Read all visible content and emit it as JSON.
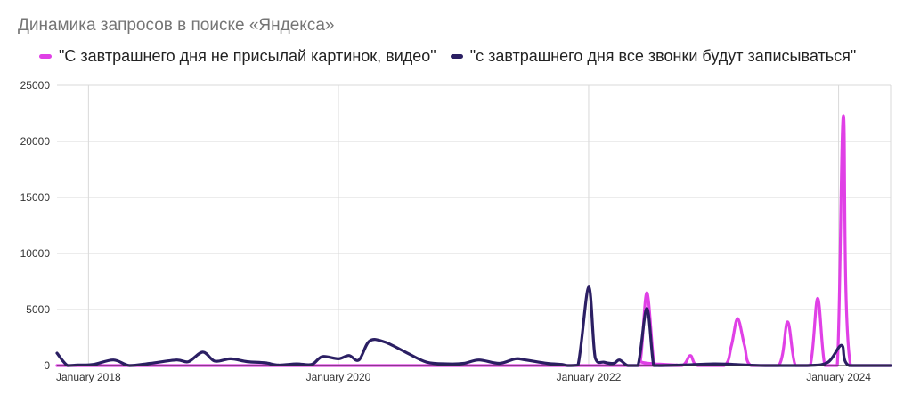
{
  "chart_data": {
    "type": "line",
    "title": "Динамика запросов в поиске «Яндекса»",
    "legend_position": "top",
    "grid": true,
    "x_range": [
      "2017-10-01",
      "2024-06-01"
    ],
    "ylim": [
      0,
      25000
    ],
    "y_ticks": [
      "0",
      "5000",
      "10000",
      "15000",
      "20000",
      "25000"
    ],
    "x_ticks": [
      {
        "date": "2018-01-01",
        "label": "January 2018"
      },
      {
        "date": "2020-01-01",
        "label": "January 2020"
      },
      {
        "date": "2022-01-01",
        "label": "January 2022"
      },
      {
        "date": "2024-01-01",
        "label": "January 2024"
      }
    ],
    "series": [
      {
        "name": "\"С завтрашнего дня не присылай картинок, видео\"",
        "color": "#e040e6",
        "points": [
          [
            "2017-10-01",
            0
          ],
          [
            "2022-05-10",
            0
          ],
          [
            "2022-06-01",
            400
          ],
          [
            "2022-06-20",
            6500
          ],
          [
            "2022-07-10",
            400
          ],
          [
            "2022-07-25",
            0
          ],
          [
            "2022-10-01",
            0
          ],
          [
            "2022-10-25",
            900
          ],
          [
            "2022-11-15",
            0
          ],
          [
            "2023-02-01",
            0
          ],
          [
            "2023-02-22",
            1800
          ],
          [
            "2023-03-12",
            4200
          ],
          [
            "2023-04-01",
            1800
          ],
          [
            "2023-04-20",
            0
          ],
          [
            "2023-07-10",
            0
          ],
          [
            "2023-08-05",
            3900
          ],
          [
            "2023-08-28",
            0
          ],
          [
            "2023-10-10",
            0
          ],
          [
            "2023-11-01",
            6000
          ],
          [
            "2023-11-22",
            0
          ],
          [
            "2023-12-28",
            0
          ],
          [
            "2024-01-15",
            22300
          ],
          [
            "2024-02-05",
            0
          ],
          [
            "2024-06-01",
            0
          ]
        ]
      },
      {
        "name": "\"с завтрашнего дня все звонки будут записываться\"",
        "color": "#2b1f63",
        "points": [
          [
            "2017-10-01",
            1100
          ],
          [
            "2017-11-01",
            0
          ],
          [
            "2017-12-01",
            50
          ],
          [
            "2018-01-15",
            100
          ],
          [
            "2018-03-15",
            500
          ],
          [
            "2018-05-01",
            0
          ],
          [
            "2018-07-01",
            200
          ],
          [
            "2018-09-15",
            500
          ],
          [
            "2018-10-20",
            350
          ],
          [
            "2018-12-01",
            1200
          ],
          [
            "2019-01-05",
            400
          ],
          [
            "2019-02-20",
            600
          ],
          [
            "2019-04-10",
            350
          ],
          [
            "2019-06-01",
            250
          ],
          [
            "2019-07-10",
            50
          ],
          [
            "2019-09-01",
            150
          ],
          [
            "2019-10-15",
            100
          ],
          [
            "2019-11-15",
            800
          ],
          [
            "2020-01-01",
            600
          ],
          [
            "2020-02-01",
            900
          ],
          [
            "2020-03-01",
            500
          ],
          [
            "2020-04-01",
            2200
          ],
          [
            "2020-05-15",
            2100
          ],
          [
            "2020-07-15",
            1200
          ],
          [
            "2020-09-15",
            300
          ],
          [
            "2020-11-15",
            150
          ],
          [
            "2021-01-01",
            200
          ],
          [
            "2021-02-15",
            500
          ],
          [
            "2021-04-15",
            200
          ],
          [
            "2021-06-01",
            600
          ],
          [
            "2021-07-01",
            500
          ],
          [
            "2021-09-01",
            200
          ],
          [
            "2021-10-15",
            100
          ],
          [
            "2021-11-01",
            0
          ],
          [
            "2021-12-01",
            50
          ],
          [
            "2022-01-01",
            7000
          ],
          [
            "2022-01-20",
            700
          ],
          [
            "2022-02-15",
            300
          ],
          [
            "2022-03-15",
            200
          ],
          [
            "2022-04-01",
            500
          ],
          [
            "2022-04-25",
            0
          ],
          [
            "2022-05-25",
            0
          ],
          [
            "2022-06-20",
            5100
          ],
          [
            "2022-07-10",
            0
          ],
          [
            "2022-08-01",
            0
          ],
          [
            "2022-10-01",
            50
          ],
          [
            "2023-01-01",
            150
          ],
          [
            "2023-03-01",
            100
          ],
          [
            "2023-06-01",
            0
          ],
          [
            "2023-10-01",
            0
          ],
          [
            "2023-12-01",
            300
          ],
          [
            "2024-01-10",
            1800
          ],
          [
            "2024-02-01",
            0
          ],
          [
            "2024-06-01",
            0
          ]
        ]
      }
    ]
  }
}
